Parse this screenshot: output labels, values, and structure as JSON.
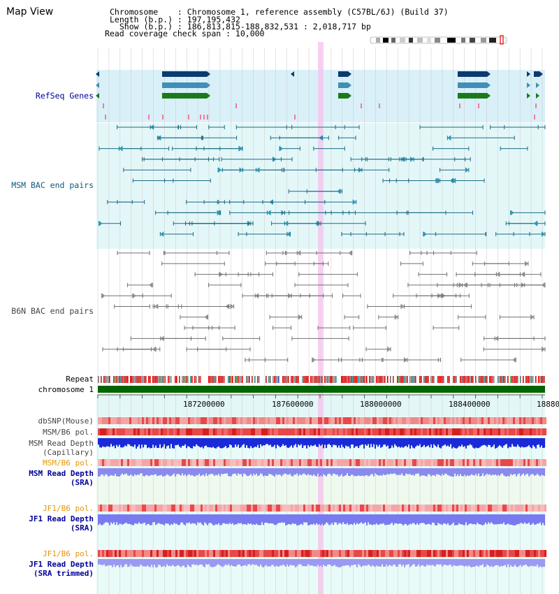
{
  "header": {
    "title": "Map View",
    "chromosome_line": "Chromosome    : Chromosome 1, reference assembly (C57BL/6J) (Build 37)",
    "length_line": "Length (b.p.) : 197,195,432",
    "show_line": "  Show (b.p.) : 186,813,815-188,832,531 : 2,018,717 bp",
    "coverage_line": "Read coverage check span : 10,000"
  },
  "tracks": {
    "refseq": "RefSeq Genes",
    "msm_bac": "MSM BAC end pairs",
    "b6n_bac": "B6N BAC end pairs",
    "repeat": "Repeat",
    "chromosome": "chromosome 1",
    "dbsnp": "dbSNP(Mouse)",
    "msm_b6_pol": "MSM/B6 pol.",
    "msm_depth_cap_1": "MSM Read Depth",
    "msm_depth_cap_2": "(Capillary)",
    "msm_b6_pol_sra": "MSM/B6 pol.",
    "msm_depth_sra_1": "MSM Read Depth",
    "msm_depth_sra_2": "(SRA)",
    "jf1_b6_pol": "JF1/B6 pol.",
    "jf1_depth_1": "JF1 Read Depth",
    "jf1_depth_2": "(SRA)",
    "jf1_b6_pol_trim": "JF1/B6 pol.",
    "jf1_depth_trim_1": "JF1 Read Depth",
    "jf1_depth_trim_2": "(SRA trimmed)"
  },
  "axis": {
    "ticks": [
      "187200000",
      "187600000",
      "188000000",
      "188400000",
      "18880"
    ]
  },
  "colors": {
    "gene_dark": "#0b3a6e",
    "gene_mid": "#3f8fb8",
    "gene_green": "#1a7a1a",
    "msm_pair": "#1a6a85",
    "b6n_pair": "#707070",
    "chromosome_bar": "#006400",
    "highlight": "#f5c6ee",
    "label_gray": "#444444",
    "label_blue": "#000099",
    "label_orange": "#e69500",
    "label_msm": "#0a5a80"
  }
}
